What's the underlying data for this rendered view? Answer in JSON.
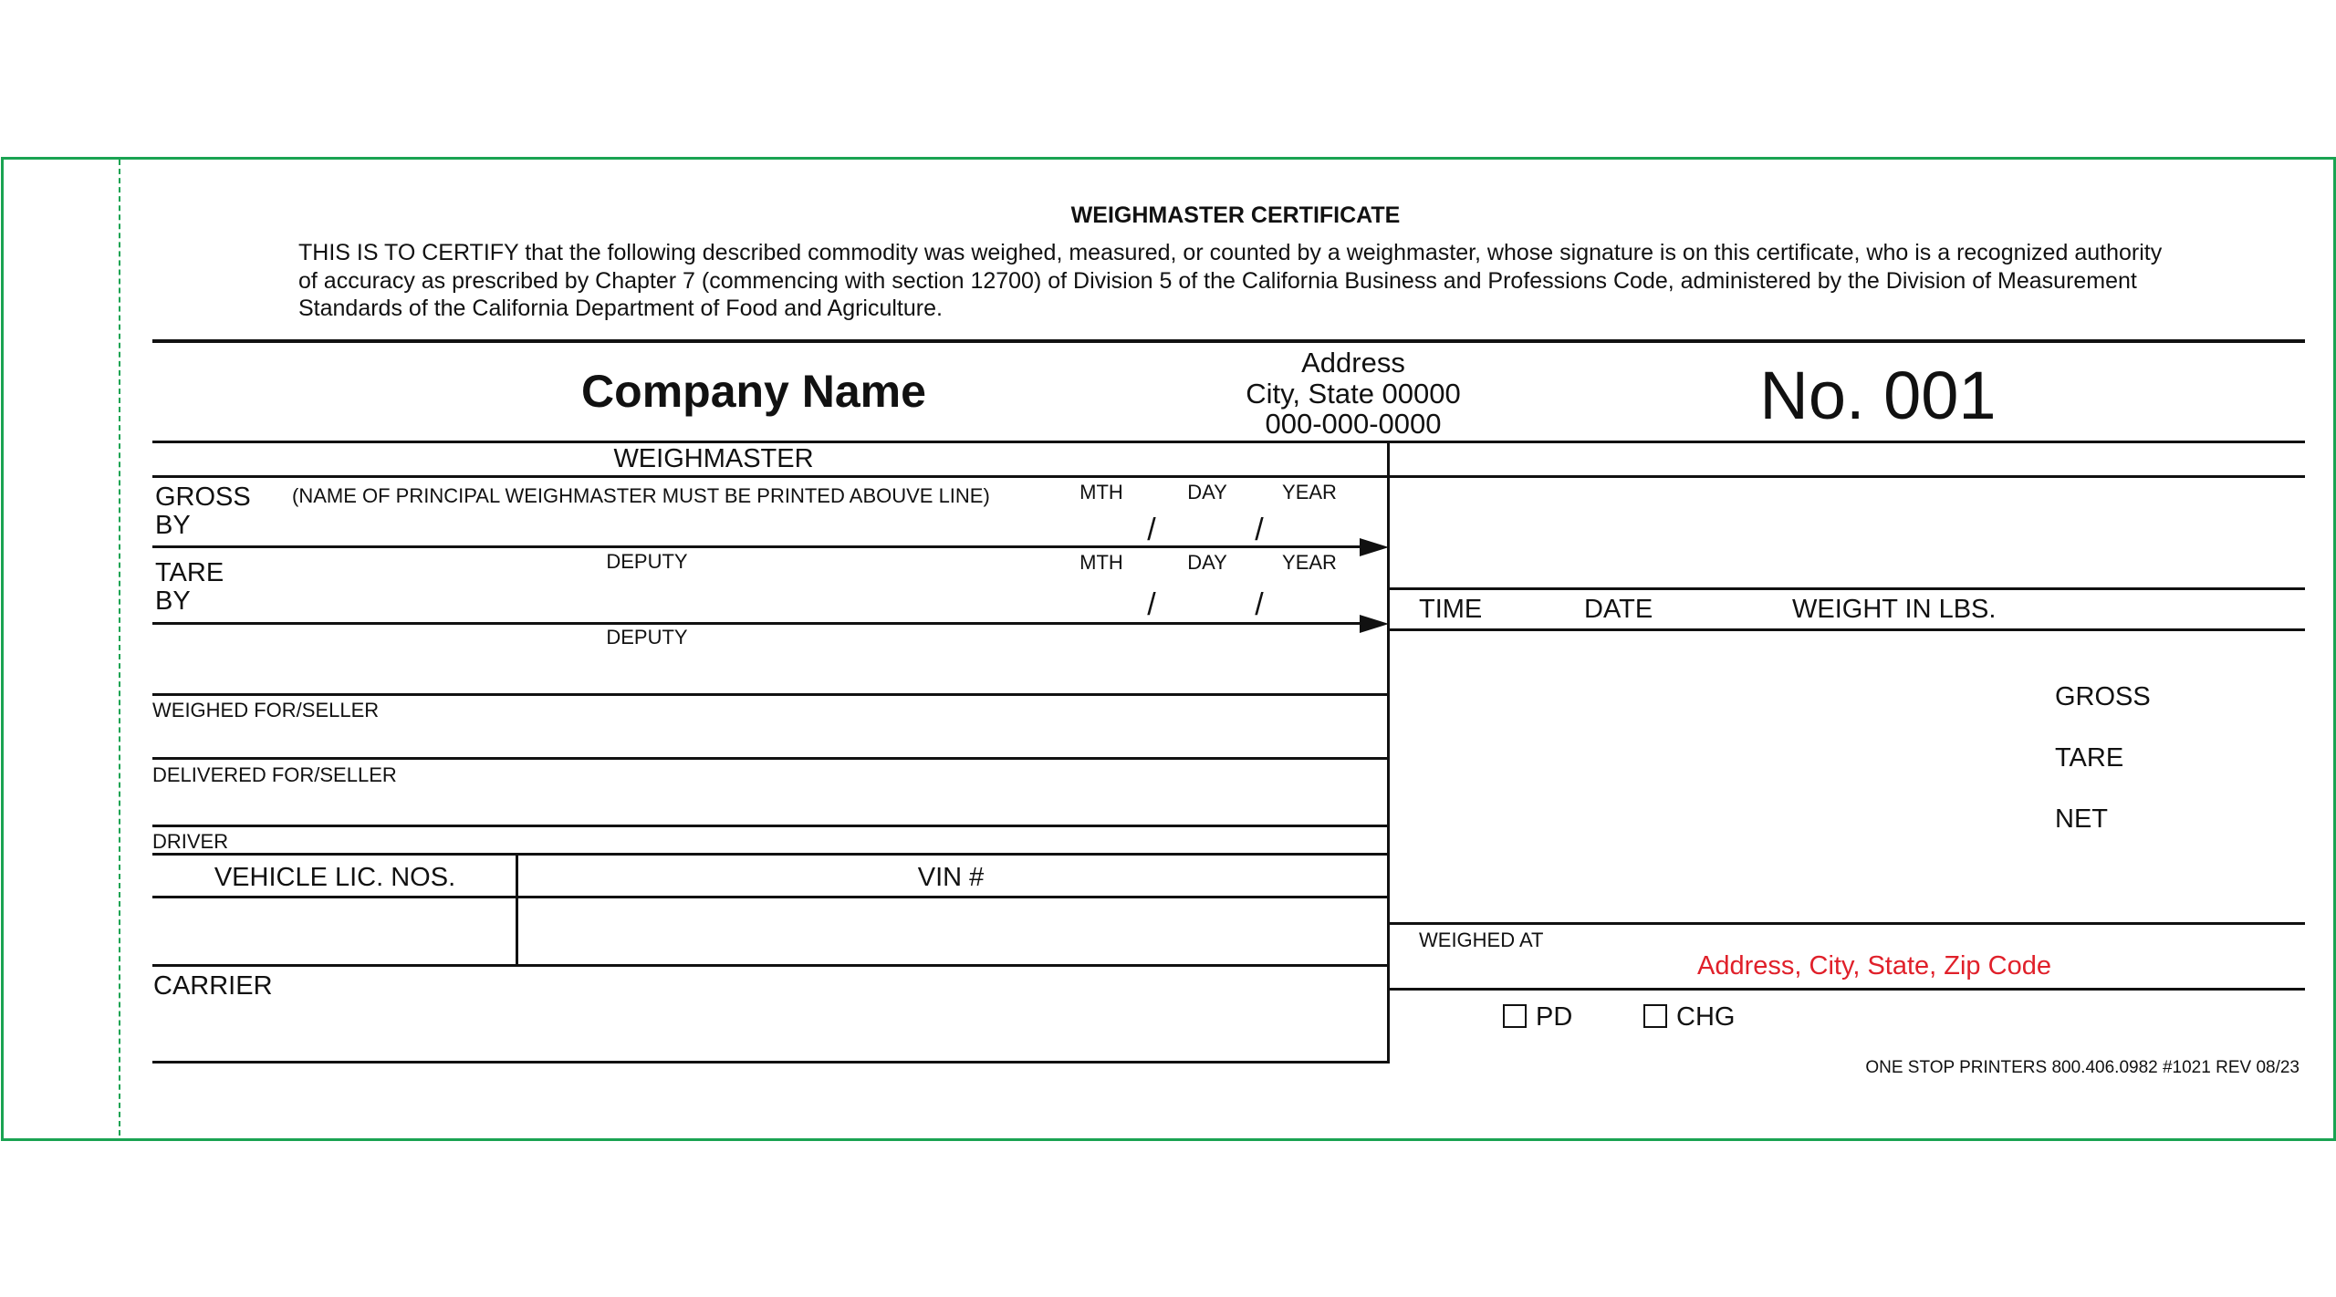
{
  "title": "WEIGHMASTER CERTIFICATE",
  "certification_text": "THIS IS TO CERTIFY that the following described commodity was weighed, measured, or counted by a weighmaster, whose signature is on this certificate, who is a recognized authority of accuracy as prescribed by Chapter 7 (commencing with section 12700) of Division 5 of the California Business and Professions Code, administered by the Division of Measurement Standards of the California Department of Food and Agriculture.",
  "company": {
    "name": "Company Name",
    "address_line1": "Address",
    "address_line2": "City, State 00000",
    "phone": "000-000-0000"
  },
  "certificate_number": "No. 001",
  "left": {
    "weighmaster_label": "WEIGHMASTER",
    "gross_label": "GROSS",
    "by_label": "BY",
    "principal_note": "(NAME OF PRINCIPAL WEIGHMASTER MUST BE PRINTED ABOUVE LINE)",
    "tare_label": "TARE",
    "deputy_label": "DEPUTY",
    "mth": "MTH",
    "day": "DAY",
    "year": "YEAR",
    "slash": "/",
    "weighed_for": "WEIGHED FOR/SELLER",
    "delivered_for": "DELIVERED FOR/SELLER",
    "driver": "DRIVER",
    "vehicle_lic": "VEHICLE LIC. NOS.",
    "vin": "VIN #",
    "carrier": "CARRIER"
  },
  "right": {
    "time": "TIME",
    "date": "DATE",
    "weight": "WEIGHT IN LBS.",
    "gross": "GROSS",
    "tare": "TARE",
    "net": "NET",
    "weighed_at": "WEIGHED AT",
    "weighed_at_address": "Address, City, State, Zip Code",
    "pd": "PD",
    "chg": "CHG"
  },
  "footer": "ONE STOP PRINTERS 800.406.0982 #1021 REV 08/23",
  "colors": {
    "border": "#1aa352",
    "accent_red": "#e0202a"
  }
}
